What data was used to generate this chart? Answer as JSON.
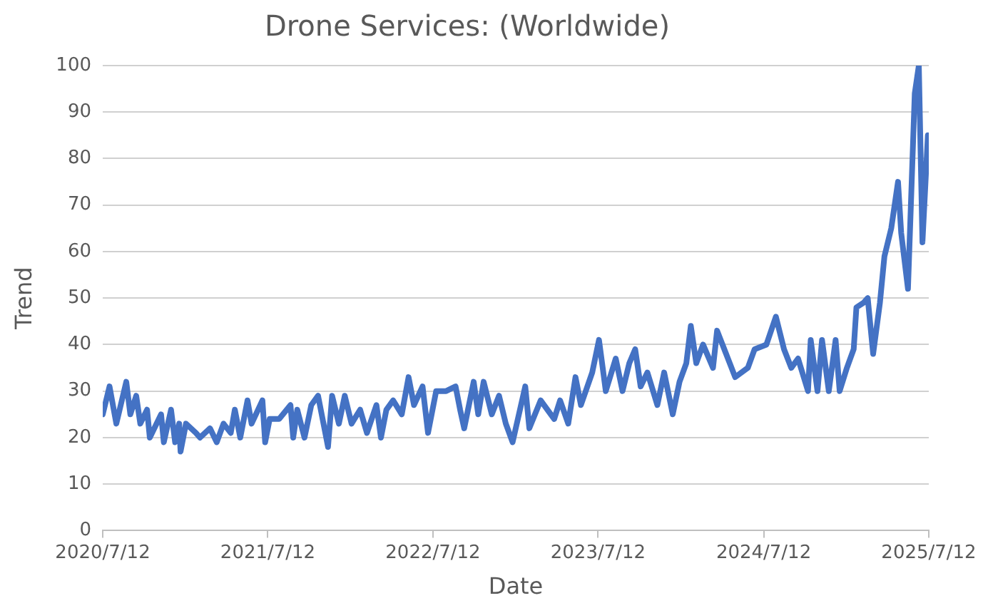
{
  "chart_data": {
    "type": "line",
    "title": "Drone Services: (Worldwide)",
    "xlabel": "Date",
    "ylabel": "Trend",
    "color": "#4472c4",
    "grid": "y",
    "legend": false,
    "marker": "none",
    "line_style": "solid",
    "xlim": [
      "2020-07-12",
      "2025-07-12"
    ],
    "xticks": [
      {
        "value": "2020-07-12",
        "label": "2020/7/12"
      },
      {
        "value": "2021-07-12",
        "label": "2021/7/12"
      },
      {
        "value": "2022-07-12",
        "label": "2022/7/12"
      },
      {
        "value": "2023-07-12",
        "label": "2023/7/12"
      },
      {
        "value": "2024-07-12",
        "label": "2024/7/12"
      },
      {
        "value": "2025-07-12",
        "label": "2025/7/12"
      }
    ],
    "ylim": [
      0,
      100
    ],
    "yticks": [
      0,
      10,
      20,
      30,
      40,
      50,
      60,
      70,
      80,
      90,
      100
    ],
    "x": [
      "2020-07-12",
      "2020-07-27",
      "2020-08-11",
      "2020-09-02",
      "2020-09-11",
      "2020-09-24",
      "2020-10-03",
      "2020-10-18",
      "2020-10-24",
      "2020-11-18",
      "2020-11-24",
      "2020-12-10",
      "2020-12-19",
      "2020-12-28",
      "2020-12-31",
      "2021-01-12",
      "2021-02-03",
      "2021-02-12",
      "2021-03-06",
      "2021-03-21",
      "2021-04-05",
      "2021-04-21",
      "2021-04-30",
      "2021-05-12",
      "2021-05-28",
      "2021-06-06",
      "2021-06-30",
      "2021-07-06",
      "2021-07-16",
      "2021-08-06",
      "2021-08-31",
      "2021-09-06",
      "2021-09-15",
      "2021-10-01",
      "2021-10-16",
      "2021-10-31",
      "2021-11-22",
      "2021-12-01",
      "2021-12-16",
      "2021-12-29",
      "2022-01-13",
      "2022-02-01",
      "2022-02-16",
      "2022-03-09",
      "2022-03-19",
      "2022-03-31",
      "2022-04-15",
      "2022-05-04",
      "2022-05-19",
      "2022-05-31",
      "2022-06-19",
      "2022-07-01",
      "2022-07-19",
      "2022-08-10",
      "2022-08-31",
      "2022-09-10",
      "2022-09-19",
      "2022-10-10",
      "2022-10-20",
      "2022-11-01",
      "2022-11-19",
      "2022-12-05",
      "2022-12-20",
      "2023-01-04",
      "2023-02-01",
      "2023-02-10",
      "2023-03-07",
      "2023-04-06",
      "2023-04-19",
      "2023-05-07",
      "2023-05-23",
      "2023-06-04",
      "2023-06-29",
      "2023-07-14",
      "2023-07-29",
      "2023-08-20",
      "2023-09-04",
      "2023-09-19",
      "2023-10-02",
      "2023-10-14",
      "2023-10-29",
      "2023-11-20",
      "2023-12-05",
      "2023-12-24",
      "2024-01-08",
      "2024-01-23",
      "2024-02-02",
      "2024-02-14",
      "2024-02-29",
      "2024-03-22",
      "2024-03-31",
      "2024-04-16",
      "2024-05-10",
      "2024-06-07",
      "2024-06-22",
      "2024-07-18",
      "2024-08-08",
      "2024-08-26",
      "2024-09-11",
      "2024-09-26",
      "2024-10-18",
      "2024-10-24",
      "2024-11-08",
      "2024-11-18",
      "2024-12-03",
      "2024-12-18",
      "2024-12-27",
      "2025-01-12",
      "2025-01-27",
      "2025-02-02",
      "2025-02-18",
      "2025-02-27",
      "2025-03-11",
      "2025-03-26",
      "2025-04-05",
      "2025-04-20",
      "2025-05-05",
      "2025-05-12",
      "2025-05-27",
      "2025-06-11",
      "2025-06-20",
      "2025-06-28",
      "2025-07-10"
    ],
    "values": [
      25,
      31,
      23,
      32,
      25,
      29,
      23,
      26,
      20,
      25,
      19,
      26,
      19,
      23,
      17,
      23,
      21,
      20,
      22,
      19,
      23,
      21,
      26,
      20,
      28,
      23,
      28,
      19,
      24,
      24,
      27,
      20,
      26,
      20,
      27,
      29,
      18,
      29,
      23,
      29,
      23,
      26,
      21,
      27,
      20,
      26,
      28,
      25,
      33,
      27,
      31,
      21,
      30,
      30,
      31,
      26,
      22,
      32,
      25,
      32,
      25,
      29,
      23,
      19,
      31,
      22,
      28,
      24,
      28,
      23,
      33,
      27,
      34,
      41,
      30,
      37,
      30,
      36,
      39,
      31,
      34,
      27,
      34,
      25,
      32,
      36,
      44,
      36,
      40,
      35,
      43,
      39,
      33,
      35,
      39,
      40,
      46,
      39,
      35,
      37,
      30,
      41,
      30,
      41,
      30,
      41,
      30,
      35,
      39,
      48,
      49,
      50,
      38,
      49,
      59,
      65,
      75,
      64,
      52,
      94,
      100,
      62,
      85
    ]
  }
}
